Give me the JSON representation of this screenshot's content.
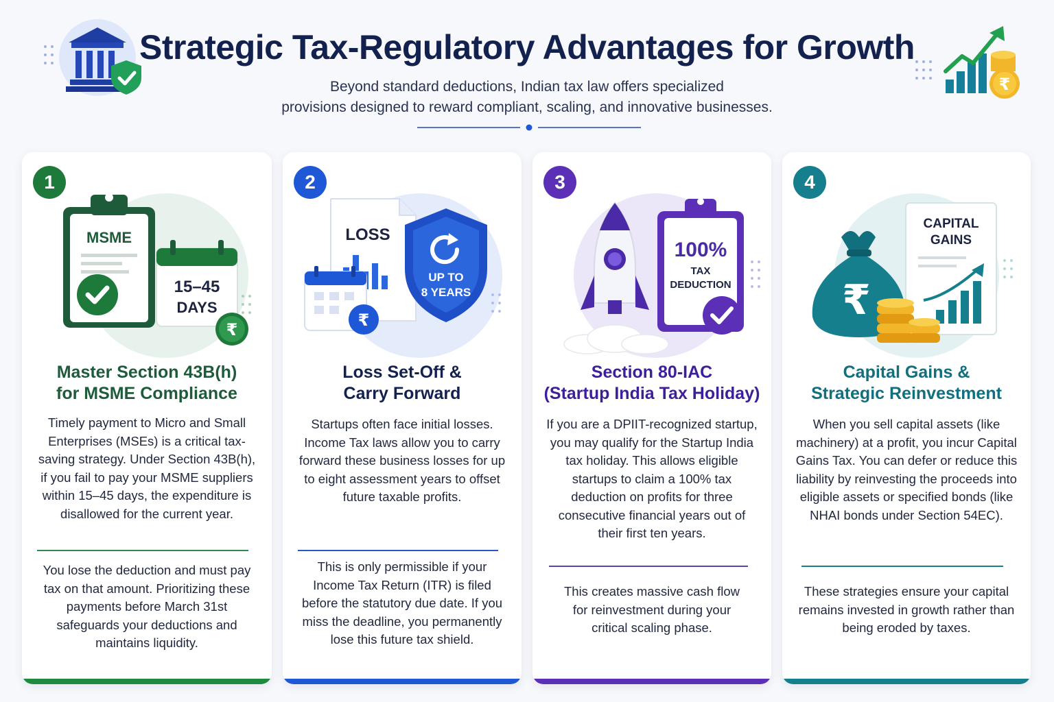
{
  "header": {
    "title": "Strategic Tax-Regulatory Advantages for Growth",
    "subtitle_line1": "Beyond standard deductions, Indian tax law offers specialized",
    "subtitle_line2": "provisions designed to reward compliant, scaling, and innovative businesses."
  },
  "colors": {
    "green": "#1e7a3a",
    "blue": "#1f58d6",
    "purple": "#5b2fb6",
    "teal": "#157f8e",
    "navy": "#13214f"
  },
  "cards": [
    {
      "number": "1",
      "title_line1": "Master Section 43B(h)",
      "title_line2": "for MSME Compliance",
      "body": "Timely payment to Micro and Small Enterprises (MSEs) is a critical tax-saving strategy. Under Section 43B(h), if you fail to pay your MSME suppliers within 15–45 days, the expenditure is disallowed for the current year.",
      "note": "You lose the deduction and must pay tax on that amount. Prioritizing these payments before March 31st safeguards your deductions and maintains liquidity.",
      "illus_label": "MSME",
      "illus_days_line1": "15–45",
      "illus_days_line2": "DAYS",
      "rupee": "₹",
      "icons": [
        "clipboard-icon",
        "checkmark-icon",
        "calendar-icon",
        "rupee-coin-icon"
      ]
    },
    {
      "number": "2",
      "title_line1": "Loss Set-Off &",
      "title_line2": "Carry Forward",
      "body": "Startups often face initial losses. Income Tax laws allow you to carry forward these business losses for up to eight assessment years to offset future taxable profits.",
      "note": "This is only permissible if your Income Tax Return (ITR) is filed before the statutory due date. If you miss the deadline, you permanently lose this future tax shield.",
      "illus_label": "LOSS",
      "illus_shield_line1": "UP TO",
      "illus_shield_line2": "8 YEARS",
      "rupee": "₹",
      "icons": [
        "document-icon",
        "shield-icon",
        "refresh-icon",
        "calendar-icon",
        "rupee-coin-icon"
      ]
    },
    {
      "number": "3",
      "title_line1": "Section 80-IAC",
      "title_line2": "(Startup India Tax Holiday)",
      "body": "If you are a DPIIT-recognized startup, you may qualify for the Startup India tax holiday. This allows eligible startups to claim a 100% tax deduction on profits for three consecutive financial years out of their first ten years.",
      "note": "This creates massive cash flow for reinvestment during your critical scaling phase.",
      "illus_label": "100%",
      "illus_sub_line1": "TAX",
      "illus_sub_line2": "DEDUCTION",
      "icons": [
        "rocket-icon",
        "clipboard-icon",
        "checkmark-icon"
      ]
    },
    {
      "number": "4",
      "title_line1": "Capital Gains &",
      "title_line2": "Strategic Reinvestment",
      "body": "When you sell capital assets (like machinery) at a profit, you incur Capital Gains Tax. You can defer or reduce this liability by reinvesting the proceeds into eligible assets or specified bonds (like NHAI bonds under Section 54EC).",
      "note": "These strategies ensure your capital remains invested in growth rather than being eroded by taxes.",
      "illus_label_line1": "CAPITAL",
      "illus_label_line2": "GAINS",
      "rupee": "₹",
      "icons": [
        "money-bag-icon",
        "coin-stack-icon",
        "growth-chart-icon"
      ]
    }
  ],
  "header_icons": [
    "bank-icon",
    "shield-check-icon",
    "growth-chart-icon",
    "rupee-coin-icon"
  ]
}
